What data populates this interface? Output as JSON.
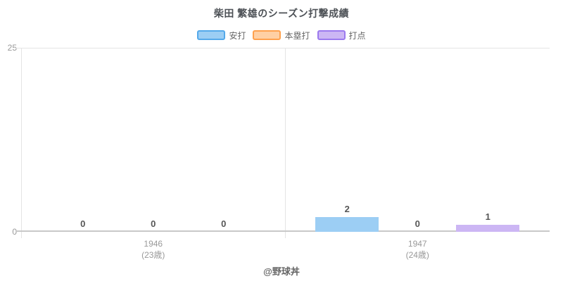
{
  "title": "柴田 繁雄のシーズン打撃成績",
  "footer_credit": "@野球丼",
  "y_axis": {
    "top_tick": "25",
    "bottom_tick": "0"
  },
  "chart_data": {
    "type": "bar",
    "title": "柴田 繁雄のシーズン打撃成績",
    "categories": [
      {
        "year": "1946",
        "age": "(23歳)"
      },
      {
        "year": "1947",
        "age": "(24歳)"
      }
    ],
    "series": [
      {
        "name": "安打",
        "values": [
          0,
          2
        ],
        "fill": "#9CCEF4",
        "border": "#54A9EA"
      },
      {
        "name": "本塁打",
        "values": [
          0,
          0
        ],
        "fill": "#FFD0A4",
        "border": "#FFA14D"
      },
      {
        "name": "打点",
        "values": [
          0,
          1
        ],
        "fill": "#CCB6F4",
        "border": "#9B79EE"
      }
    ],
    "ylim": [
      0,
      25
    ],
    "y_ticks": [
      0,
      25
    ],
    "grid": true,
    "legend_position": "top",
    "value_labels": true
  }
}
